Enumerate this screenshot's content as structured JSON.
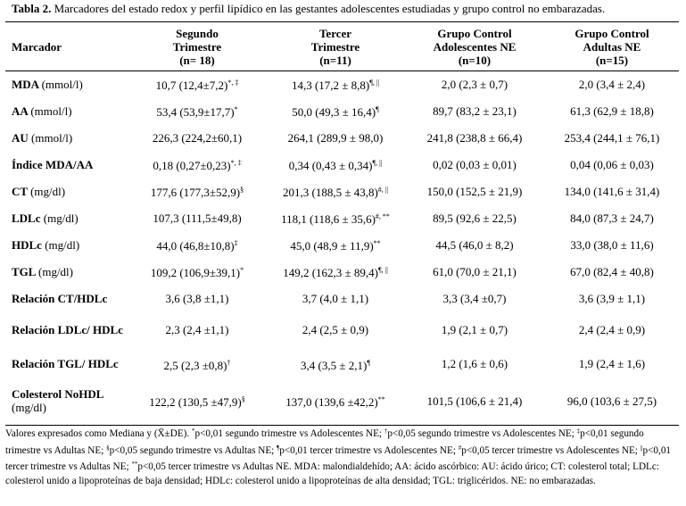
{
  "caption": {
    "prefix": "Tabla 2.",
    "text": "Marcadores del estado redox y perfil lipídico en las gestantes adolescentes estudiadas y grupo control no embarazadas."
  },
  "headers": [
    {
      "lines": [
        "Marcador"
      ]
    },
    {
      "lines": [
        "Segundo",
        "Trimestre",
        "(n= 18)"
      ]
    },
    {
      "lines": [
        "Tercer",
        "Trimestre",
        "(n=11)"
      ]
    },
    {
      "lines": [
        "Grupo Control",
        "Adolescentes NE",
        "(n=10)"
      ]
    },
    {
      "lines": [
        "Grupo Control",
        "Adultas NE",
        "(n=15)"
      ]
    }
  ],
  "rows": [
    {
      "label": "MDA",
      "unit": "(mmol/l)",
      "cells": [
        {
          "v": "10,7 (12,4±7,2)",
          "s": "*, ‡"
        },
        {
          "v": "14,3 (17,2 ± 8,8)",
          "s": "¶, ||"
        },
        {
          "v": "2,0 (2,3 ± 0,7)",
          "s": ""
        },
        {
          "v": "2,0 (3,4 ± 2,4)",
          "s": ""
        }
      ]
    },
    {
      "label": "AA",
      "unit": "(mmol/l)",
      "cells": [
        {
          "v": "53,4 (53,9±17,7)",
          "s": "*"
        },
        {
          "v": "50,0 (49,3 ± 16,4)",
          "s": "¶"
        },
        {
          "v": "89,7 (83,2 ± 23,1)",
          "s": ""
        },
        {
          "v": "61,3 (62,9 ± 18,8)",
          "s": ""
        }
      ]
    },
    {
      "label": "AU",
      "unit": "(mmol/l)",
      "cells": [
        {
          "v": "226,3 (224,2±60,1)",
          "s": ""
        },
        {
          "v": "264,1 (289,9 ± 98,0)",
          "s": ""
        },
        {
          "v": "241,8 (238,8 ± 66,4)",
          "s": ""
        },
        {
          "v": "253,4 (244,1 ± 76,1)",
          "s": ""
        }
      ]
    },
    {
      "label": "Índice MDA/AA",
      "unit": "",
      "cells": [
        {
          "v": "0,18 (0,27±0,23)",
          "s": "*, ‡"
        },
        {
          "v": "0,34 (0,43 ± 0,34)",
          "s": "¶, ||"
        },
        {
          "v": "0,02 (0,03 ± 0,01)",
          "s": ""
        },
        {
          "v": "0,04 (0,06 ± 0,03)",
          "s": ""
        }
      ]
    },
    {
      "label": "CT",
      "unit": "(mg/dl)",
      "cells": [
        {
          "v": "177,6 (177,3±52,9)",
          "s": "§"
        },
        {
          "v": "201,3 (188,5 ± 43,8)",
          "s": "#, ||"
        },
        {
          "v": "150,0 (152,5 ± 21,9)",
          "s": ""
        },
        {
          "v": "134,0 (141,6 ± 31,4)",
          "s": ""
        }
      ]
    },
    {
      "label": "LDLc",
      "unit": "(mg/dl)",
      "cells": [
        {
          "v": "107,3 (111,5±49,8)",
          "s": ""
        },
        {
          "v": "118,1 (118,6 ± 35,6)",
          "s": "#, **"
        },
        {
          "v": "89,5 (92,6 ± 22,5)",
          "s": ""
        },
        {
          "v": "84,0 (87,3 ± 24,7)",
          "s": ""
        }
      ]
    },
    {
      "label": "HDLc",
      "unit": "(mg/dl)",
      "cells": [
        {
          "v": "44,0 (46,8±10,8)",
          "s": "‡"
        },
        {
          "v": "45,0 (48,9 ± 11,9)",
          "s": "**"
        },
        {
          "v": "44,5 (46,0 ± 8,2)",
          "s": ""
        },
        {
          "v": "33,0 (38,0 ± 11,6)",
          "s": ""
        }
      ]
    },
    {
      "label": "TGL",
      "unit": "(mg/dl)",
      "cells": [
        {
          "v": "109,2 (106,9±39,1)",
          "s": "*"
        },
        {
          "v": "149,2 (162,3 ± 89,4)",
          "s": "¶, ||"
        },
        {
          "v": "61,0 (70,0 ± 21,1)",
          "s": ""
        },
        {
          "v": "67,0 (82,4 ± 40,8)",
          "s": ""
        }
      ]
    },
    {
      "label": "Relación CT/HDLc",
      "unit": "",
      "cells": [
        {
          "v": "3,6 (3,8 ±1,1)",
          "s": ""
        },
        {
          "v": "3,7 (4,0 ± 1,1)",
          "s": ""
        },
        {
          "v": "3,3 (3,4 ±0,7)",
          "s": ""
        },
        {
          "v": "3,6 (3,9 ± 1,1)",
          "s": ""
        }
      ]
    },
    {
      "label": "Relación LDLc/ HDLc",
      "unit": "",
      "cells": [
        {
          "v": "2,3 (2,4 ±1,1)",
          "s": ""
        },
        {
          "v": "2,4 (2,5 ± 0,9)",
          "s": ""
        },
        {
          "v": "1,9 (2,1 ± 0,7)",
          "s": ""
        },
        {
          "v": "2,4 (2,4 ± 0,9)",
          "s": ""
        }
      ]
    },
    {
      "label": "Relación TGL/ HDLc",
      "unit": "",
      "cells": [
        {
          "v": "2,5 (2,3 ±0,8)",
          "s": "†"
        },
        {
          "v": "3,4 (3,5 ± 2,1)",
          "s": "¶"
        },
        {
          "v": "1,2 (1,6 ± 0,6)",
          "s": ""
        },
        {
          "v": "1,9 (2,4 ± 1,6)",
          "s": ""
        }
      ]
    },
    {
      "label": "Colesterol NoHDL",
      "unit": "(mg/dl)",
      "cells": [
        {
          "v": "122,2 (130,5 ±47,9)",
          "s": "§"
        },
        {
          "v": "137,0 (139,6 ±42,2)",
          "s": "**"
        },
        {
          "v": "101,5 (106,6 ± 21,4)",
          "s": ""
        },
        {
          "v": "96,0 (103,6 ± 27,5)",
          "s": ""
        }
      ]
    }
  ],
  "notes": [
    {
      "t": "Valores expresados como Mediana y (X̄±DE). "
    },
    {
      "s": "*"
    },
    {
      "t": "p<0,01 segundo trimestre vs Adolescentes NE; "
    },
    {
      "s": "†"
    },
    {
      "t": "p<0,05 segundo trimestre vs Adolescentes NE; "
    },
    {
      "s": "‡"
    },
    {
      "t": "p<0,01 segundo trimestre vs Adultas NE; "
    },
    {
      "s": "§"
    },
    {
      "t": "p<0,05 segundo trimestre vs Adultas NE; "
    },
    {
      "s": "¶"
    },
    {
      "t": "p<0,01 tercer trimestre vs Adolescentes NE; "
    },
    {
      "s": "#"
    },
    {
      "t": "p<0,05 tercer trimestre vs Adolescentes NE; "
    },
    {
      "s": "||"
    },
    {
      "t": "p<0,01 tercer trimestre vs Adultas NE; "
    },
    {
      "s": "**"
    },
    {
      "t": "p<0,05 tercer trimestre vs Adultas NE. MDA: malondialdehído; AA: ácido ascórbico: AU: ácido úrico; CT: colesterol total; LDLc: colesterol unido a lipoproteínas de baja densidad; HDLc: colesterol unido a lipoproteínas de alta densidad; TGL: triglicéridos. NE: no embarazadas."
    }
  ]
}
